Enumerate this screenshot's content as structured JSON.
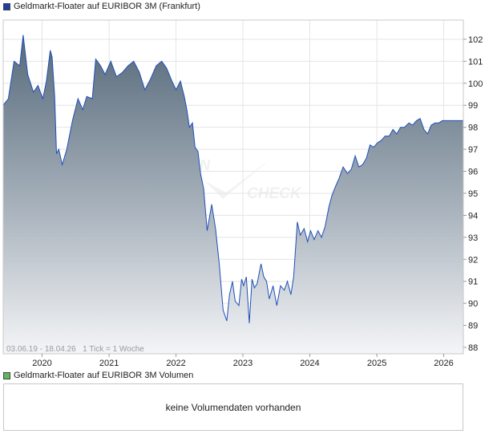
{
  "price_legend": {
    "label": "Geldmarkt-Floater auf EURIBOR 3M (Frankfurt)",
    "color": "#1f3f9e"
  },
  "volume_legend": {
    "label": "Geldmarkt-Floater auf EURIBOR 3M Volumen",
    "color": "#5cb85c"
  },
  "chart_info": "03.06.19 - 18.04.26   1 Tick = 1 Woche",
  "watermark": "FINANZEN CHECK",
  "volume_panel": {
    "message": "keine Volumendaten vorhanden"
  },
  "colors": {
    "line": "#1f4fb8",
    "fill_top": "#56697a",
    "fill_bottom": "#f4f5f7",
    "grid": "#e4e4e4",
    "frame": "#c8c8c8"
  },
  "chart_data": {
    "type": "area",
    "title": "Geldmarkt-Floater auf EURIBOR 3M (Frankfurt)",
    "xlabel": "",
    "ylabel": "",
    "xlim": [
      "2019-06-03",
      "2026-04-18"
    ],
    "ylim": [
      88,
      103
    ],
    "y_ticks": [
      88,
      89,
      90,
      91,
      92,
      93,
      94,
      95,
      96,
      97,
      98,
      99,
      100,
      101,
      102
    ],
    "x_ticks": [
      "2020",
      "2021",
      "2022",
      "2023",
      "2024",
      "2025",
      "2026"
    ],
    "grid": true,
    "series": [
      {
        "name": "Geldmarkt-Floater auf EURIBOR 3M (Frankfurt)",
        "x": [
          "2019-06-03",
          "2019-07-01",
          "2019-08-01",
          "2019-09-01",
          "2019-09-20",
          "2019-10-15",
          "2019-11-15",
          "2019-12-10",
          "2020-01-05",
          "2020-01-25",
          "2020-02-15",
          "2020-02-25",
          "2020-03-10",
          "2020-03-20",
          "2020-04-01",
          "2020-04-20",
          "2020-05-15",
          "2020-06-15",
          "2020-07-15",
          "2020-08-10",
          "2020-09-01",
          "2020-10-01",
          "2020-10-20",
          "2020-11-15",
          "2020-12-10",
          "2021-01-10",
          "2021-02-10",
          "2021-03-15",
          "2021-04-15",
          "2021-05-15",
          "2021-06-15",
          "2021-07-15",
          "2021-08-15",
          "2021-09-15",
          "2021-10-15",
          "2021-11-10",
          "2021-12-10",
          "2022-01-01",
          "2022-01-25",
          "2022-02-15",
          "2022-03-01",
          "2022-03-15",
          "2022-04-01",
          "2022-04-15",
          "2022-05-01",
          "2022-05-15",
          "2022-06-01",
          "2022-06-20",
          "2022-07-15",
          "2022-08-05",
          "2022-08-25",
          "2022-09-15",
          "2022-10-05",
          "2022-10-20",
          "2022-11-05",
          "2022-11-20",
          "2022-12-10",
          "2022-12-25",
          "2023-01-05",
          "2023-01-20",
          "2023-02-05",
          "2023-02-20",
          "2023-03-05",
          "2023-03-20",
          "2023-04-10",
          "2023-04-25",
          "2023-05-10",
          "2023-05-25",
          "2023-06-15",
          "2023-07-05",
          "2023-07-25",
          "2023-08-15",
          "2023-09-01",
          "2023-09-20",
          "2023-10-05",
          "2023-10-25",
          "2023-11-10",
          "2023-12-01",
          "2023-12-20",
          "2024-01-05",
          "2024-01-25",
          "2024-02-15",
          "2024-03-05",
          "2024-03-25",
          "2024-04-15",
          "2024-05-01",
          "2024-05-20",
          "2024-06-10",
          "2024-07-01",
          "2024-07-25",
          "2024-08-15",
          "2024-09-05",
          "2024-09-25",
          "2024-10-15",
          "2024-11-05",
          "2024-11-25",
          "2024-12-15",
          "2025-01-05",
          "2025-01-25",
          "2025-02-15",
          "2025-03-10",
          "2025-03-30",
          "2025-04-20",
          "2025-05-10",
          "2025-06-01",
          "2025-06-25",
          "2025-07-15",
          "2025-08-05",
          "2025-08-25",
          "2025-09-15",
          "2025-10-05",
          "2025-10-25",
          "2025-11-15",
          "2025-12-05",
          "2025-12-25",
          "2026-01-15",
          "2026-02-05",
          "2026-02-25",
          "2026-03-15",
          "2026-04-01",
          "2026-04-18"
        ],
        "values": [
          99.0,
          99.3,
          101.0,
          100.8,
          102.2,
          100.4,
          99.6,
          99.9,
          99.3,
          100.1,
          101.5,
          101.2,
          99.4,
          96.8,
          97.0,
          96.3,
          97.0,
          98.3,
          99.3,
          98.8,
          99.4,
          99.3,
          101.1,
          100.8,
          100.4,
          101.0,
          100.3,
          100.5,
          100.8,
          101.0,
          100.5,
          99.7,
          100.2,
          100.8,
          101.0,
          100.7,
          100.1,
          99.7,
          100.1,
          99.4,
          98.8,
          98.0,
          98.2,
          97.1,
          96.9,
          95.9,
          95.2,
          93.3,
          94.5,
          93.4,
          91.8,
          89.7,
          89.2,
          90.4,
          91.0,
          90.1,
          89.9,
          91.1,
          90.8,
          91.2,
          89.1,
          91.1,
          90.7,
          90.9,
          91.8,
          91.2,
          91.0,
          90.2,
          90.8,
          89.9,
          90.8,
          90.6,
          91.0,
          90.4,
          91.2,
          93.7,
          93.1,
          93.4,
          92.8,
          93.3,
          92.9,
          93.3,
          93.0,
          93.5,
          94.4,
          94.9,
          95.3,
          95.7,
          96.2,
          95.9,
          96.1,
          96.7,
          96.2,
          96.3,
          96.6,
          97.2,
          97.1,
          97.3,
          97.4,
          97.6,
          97.6,
          97.9,
          97.7,
          98.0,
          98.0,
          98.2,
          98.1,
          98.3,
          98.4,
          97.9,
          97.7,
          98.1,
          98.2,
          98.2,
          98.3,
          98.3,
          98.3,
          98.3,
          98.3,
          98.3,
          98.3
        ]
      }
    ]
  }
}
